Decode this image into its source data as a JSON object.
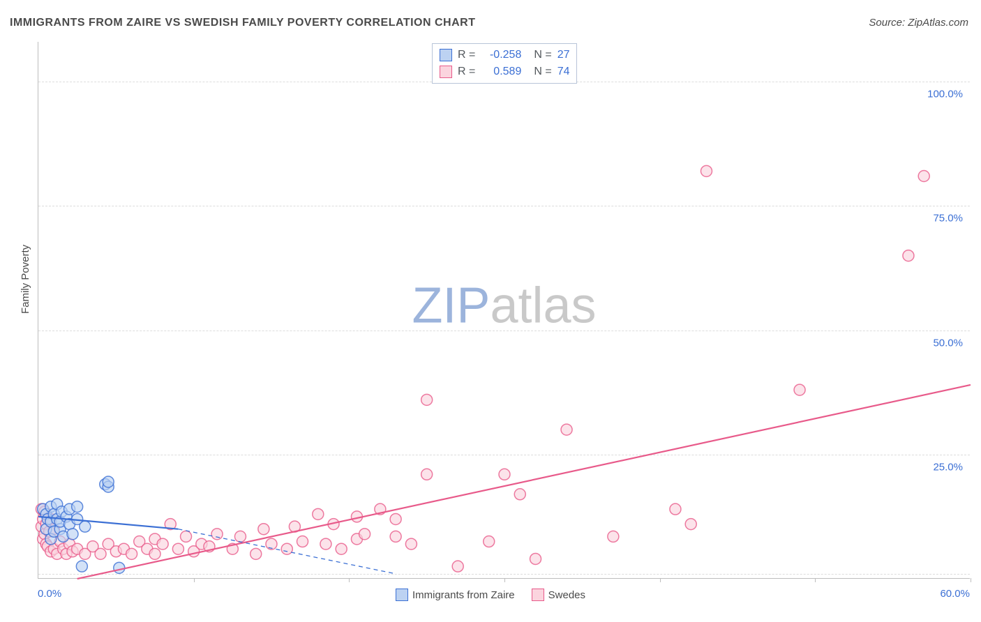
{
  "title": "IMMIGRANTS FROM ZAIRE VS SWEDISH FAMILY POVERTY CORRELATION CHART",
  "source_label": "Source:",
  "source_value": "ZipAtlas.com",
  "y_axis_label": "Family Poverty",
  "watermark_a": "ZIP",
  "watermark_b": "atlas",
  "chart": {
    "type": "scatter",
    "background_color": "#ffffff",
    "grid_color": "#dcdcdc",
    "axis_color": "#bdbdbd",
    "tick_label_color": "#3b6fd4",
    "xlim": [
      0,
      60
    ],
    "ylim": [
      0,
      108
    ],
    "xticks": [
      0,
      10,
      20,
      30,
      40,
      50,
      60
    ],
    "xtick_labels_shown": {
      "0": "0.0%",
      "60": "60.0%"
    },
    "yticks": [
      25,
      50,
      75,
      100
    ],
    "ytick_labels": {
      "25": "25.0%",
      "50": "50.0%",
      "75": "75.0%",
      "100": "100.0%"
    },
    "marker_radius": 8,
    "marker_stroke_width": 1.5,
    "line_width_solid": 2.2,
    "line_width_dash": 1.3,
    "dash_pattern": "6,5",
    "watermark_colors": {
      "a": "#9cb4dc",
      "b": "#c9c9c9"
    },
    "series": [
      {
        "id": "zaire",
        "label": "Immigrants from Zaire",
        "fill": "#bcd2f2",
        "stroke": "#3b6fd4",
        "R": "-0.258",
        "N": "27",
        "trend_solid": {
          "x1": 0,
          "y1": 12.5,
          "x2": 9,
          "y2": 10.0
        },
        "trend_dash": {
          "x1": 9,
          "y1": 10.0,
          "x2": 23,
          "y2": 1.0
        },
        "points": [
          [
            0.3,
            14
          ],
          [
            0.5,
            10
          ],
          [
            0.5,
            13
          ],
          [
            0.6,
            12
          ],
          [
            0.8,
            11.5
          ],
          [
            0.8,
            14.5
          ],
          [
            0.8,
            8
          ],
          [
            1.0,
            13
          ],
          [
            1.0,
            9.5
          ],
          [
            1.2,
            12
          ],
          [
            1.2,
            15
          ],
          [
            1.4,
            10
          ],
          [
            1.4,
            11.5
          ],
          [
            1.5,
            13.5
          ],
          [
            1.6,
            8.5
          ],
          [
            1.8,
            12.5
          ],
          [
            2.0,
            11
          ],
          [
            2.0,
            14
          ],
          [
            2.2,
            9
          ],
          [
            2.5,
            12
          ],
          [
            2.5,
            14.5
          ],
          [
            2.8,
            2.5
          ],
          [
            3.0,
            10.5
          ],
          [
            4.3,
            19
          ],
          [
            4.5,
            18.5
          ],
          [
            4.5,
            19.5
          ],
          [
            5.2,
            2.2
          ]
        ]
      },
      {
        "id": "swedes",
        "label": "Swedes",
        "fill": "#fbd4de",
        "stroke": "#e85a8a",
        "R": "0.589",
        "N": "74",
        "trend_solid": {
          "x1": 2.5,
          "y1": 0,
          "x2": 60,
          "y2": 39
        },
        "trend_dash": null,
        "points": [
          [
            0.2,
            10.5
          ],
          [
            0.2,
            14
          ],
          [
            0.3,
            8
          ],
          [
            0.3,
            12
          ],
          [
            0.4,
            9
          ],
          [
            0.4,
            13.5
          ],
          [
            0.5,
            7
          ],
          [
            0.5,
            11
          ],
          [
            0.6,
            6.5
          ],
          [
            0.7,
            9.5
          ],
          [
            0.8,
            5.5
          ],
          [
            0.8,
            12
          ],
          [
            1.0,
            6
          ],
          [
            1.0,
            10
          ],
          [
            1.2,
            5
          ],
          [
            1.4,
            7.5
          ],
          [
            1.6,
            6.0
          ],
          [
            1.8,
            5
          ],
          [
            2.0,
            7
          ],
          [
            2.2,
            5.5
          ],
          [
            2.5,
            6
          ],
          [
            3.0,
            5.0
          ],
          [
            3.5,
            6.5
          ],
          [
            4.0,
            5
          ],
          [
            4.5,
            7
          ],
          [
            5.0,
            5.5
          ],
          [
            5.5,
            6
          ],
          [
            6.0,
            5
          ],
          [
            6.5,
            7.5
          ],
          [
            7.0,
            6
          ],
          [
            7.5,
            8
          ],
          [
            7.5,
            5
          ],
          [
            8.0,
            7
          ],
          [
            8.5,
            11
          ],
          [
            9.0,
            6
          ],
          [
            9.5,
            8.5
          ],
          [
            10,
            5.5
          ],
          [
            10.5,
            7
          ],
          [
            11,
            6.5
          ],
          [
            11.5,
            9
          ],
          [
            12.5,
            6
          ],
          [
            13,
            8.5
          ],
          [
            14,
            5
          ],
          [
            14.5,
            10
          ],
          [
            15,
            7
          ],
          [
            16,
            6
          ],
          [
            16.5,
            10.5
          ],
          [
            17,
            7.5
          ],
          [
            18,
            13
          ],
          [
            18.5,
            7
          ],
          [
            19,
            11
          ],
          [
            19.5,
            6
          ],
          [
            20.5,
            12.5
          ],
          [
            20.5,
            8
          ],
          [
            21,
            9
          ],
          [
            22,
            14
          ],
          [
            23,
            8.5
          ],
          [
            23,
            12
          ],
          [
            24,
            7
          ],
          [
            25,
            36
          ],
          [
            25,
            21
          ],
          [
            27,
            2.5
          ],
          [
            29,
            7.5
          ],
          [
            30,
            21
          ],
          [
            31,
            17
          ],
          [
            32,
            4
          ],
          [
            34,
            30
          ],
          [
            37,
            8.5
          ],
          [
            41,
            14
          ],
          [
            42,
            11
          ],
          [
            43,
            82
          ],
          [
            49,
            38
          ],
          [
            56,
            65
          ],
          [
            57,
            81
          ]
        ]
      }
    ]
  },
  "legend_bottom": [
    {
      "ref": "zaire"
    },
    {
      "ref": "swedes"
    }
  ]
}
